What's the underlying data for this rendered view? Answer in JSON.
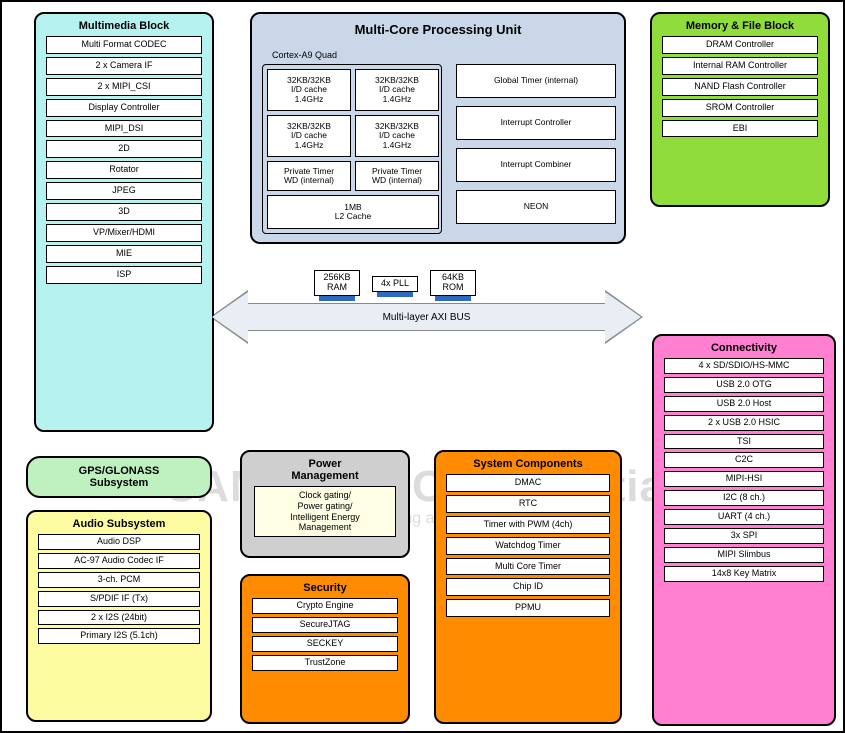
{
  "watermark": {
    "line1": "SAMSUNG Confidential",
    "line2": "samsung / dong.jang at 14:21, 2012.05.07"
  },
  "multimedia": {
    "title": "Multimedia Block",
    "bg": "#b6f3f0",
    "items": [
      "Multi Format CODEC",
      "2 x Camera IF",
      "2 x MIPI_CSI",
      "Display Controller",
      "MIPI_DSI",
      "2D",
      "Rotator",
      "JPEG",
      "3D",
      "VP/Mixer/HDMI",
      "MIE",
      "ISP"
    ]
  },
  "cpu": {
    "title": "Multi-Core Processing Unit",
    "subtitle": "Cortex-A9 Quad",
    "bg": "#c9d7e9",
    "cores": [
      "32KB/32KB\nI/D cache\n1.4GHz",
      "32KB/32KB\nI/D cache\n1.4GHz",
      "32KB/32KB\nI/D cache\n1.4GHz",
      "32KB/32KB\nI/D cache\n1.4GHz"
    ],
    "timers": [
      "Private Timer\nWD (internal)",
      "Private Timer\nWD (internal)"
    ],
    "l2": "1MB\nL2 Cache",
    "right": [
      "Global Timer (internal)",
      "Interrupt Controller",
      "Interrupt Combiner",
      "NEON"
    ]
  },
  "memory": {
    "title": "Memory & File Block",
    "bg": "#8fdc3a",
    "items": [
      "DRAM Controller",
      "Internal RAM Controller",
      "NAND Flash Controller",
      "SROM Controller",
      "EBI"
    ]
  },
  "bus": {
    "label": "Multi-layer AXI BUS",
    "chips": [
      "256KB\nRAM",
      "4x PLL",
      "64KB\nROM"
    ],
    "body_color": "#e9eef5"
  },
  "gps": {
    "title": "GPS/GLONASS\nSubsystem",
    "bg": "#bff1c0"
  },
  "audio": {
    "title": "Audio Subsystem",
    "bg": "#fdfca0",
    "items": [
      "Audio DSP",
      "AC-97 Audio Codec IF",
      "3-ch. PCM",
      "S/PDIF IF (Tx)",
      "2 x I2S (24bit)",
      "Primary I2S (5.1ch)"
    ]
  },
  "power": {
    "title": "Power\nManagement",
    "bg": "#cfcfcf",
    "inner": "Clock gating/\nPower gating/\nIntelligent Energy\nManagement"
  },
  "security": {
    "title": "Security",
    "bg": "#ff8b00",
    "items": [
      "Crypto Engine",
      "SecureJTAG",
      "SECKEY",
      "TrustZone"
    ]
  },
  "system": {
    "title": "System Components",
    "bg": "#ff8b00",
    "items": [
      "DMAC",
      "RTC",
      "Timer with PWM (4ch)",
      "Watchdog Timer",
      "Multi Core Timer",
      "Chip ID",
      "PPMU"
    ]
  },
  "connectivity": {
    "title": "Connectivity",
    "bg": "#ff7fd0",
    "items": [
      "4 x SD/SDIO/HS-MMC",
      "USB 2.0 OTG",
      "USB 2.0 Host",
      "2 x USB 2.0 HSIC",
      "TSI",
      "C2C",
      "MIPI-HSI",
      "I2C (8 ch.)",
      "UART (4 ch.)",
      "3x SPI",
      "MIPI Slimbus",
      "14x8 Key Matrix"
    ]
  }
}
